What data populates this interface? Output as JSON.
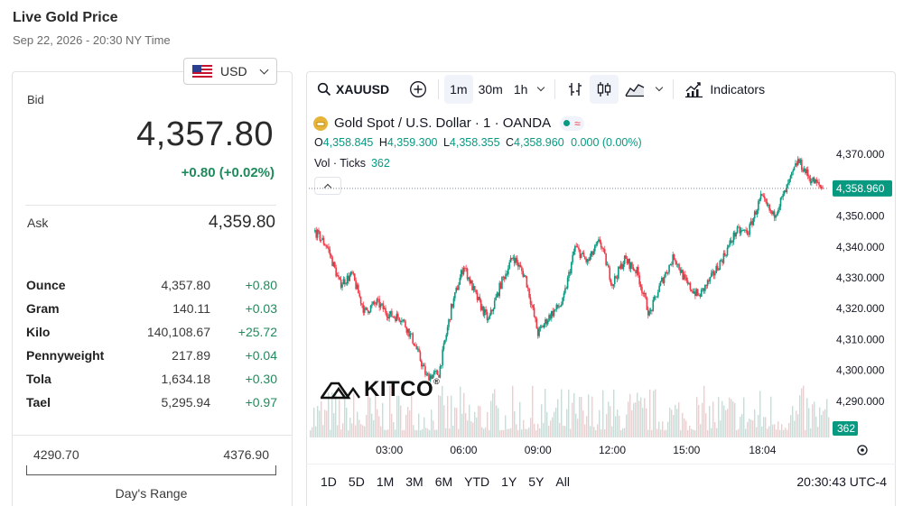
{
  "header": {
    "title": "Live Gold Price",
    "subtitle": "Sep 22, 2026 - 20:30 NY Time"
  },
  "currency": {
    "selected": "USD"
  },
  "quote": {
    "bid_label": "Bid",
    "bid": "4,357.80",
    "change": "+0.80 (+0.02%)",
    "ask_label": "Ask",
    "ask": "4,359.80"
  },
  "units": [
    {
      "name": "Ounce",
      "price": "4,357.80",
      "change": "+0.80"
    },
    {
      "name": "Gram",
      "price": "140.11",
      "change": "+0.03"
    },
    {
      "name": "Kilo",
      "price": "140,108.67",
      "change": "+25.72"
    },
    {
      "name": "Pennyweight",
      "price": "217.89",
      "change": "+0.04"
    },
    {
      "name": "Tola",
      "price": "1,634.18",
      "change": "+0.30"
    },
    {
      "name": "Tael",
      "price": "5,295.94",
      "change": "+0.97"
    }
  ],
  "day_range": {
    "low": "4290.70",
    "high": "4376.90",
    "label": "Day's Range"
  },
  "toolbar": {
    "symbol": "XAUUSD",
    "intervals": [
      "1m",
      "30m",
      "1h"
    ],
    "indicators_label": "Indicators"
  },
  "legend": {
    "instrument": "Gold Spot / U.S. Dollar · 1 · OANDA",
    "o_label": "O",
    "o": "4,358.845",
    "h_label": "H",
    "h": "4,359.300",
    "l_label": "L",
    "l": "4,358.355",
    "c_label": "C",
    "c": "4,358.960",
    "chg": "0.000 (0.00%)",
    "vol_label": "Vol · Ticks",
    "vol": "362"
  },
  "brand": {
    "logo_text": "KITCO",
    "reg": "®"
  },
  "bottom": {
    "timeframes": [
      "1D",
      "5D",
      "1M",
      "3M",
      "6M",
      "YTD",
      "1Y",
      "5Y",
      "All"
    ],
    "clock": "20:30:43 UTC-4"
  },
  "colors": {
    "up": "#089981",
    "down": "#f23645",
    "accent": "#1f8a5b",
    "gold": "#e8b339"
  },
  "chart_data": {
    "type": "line",
    "x_ticks": [
      "03:00",
      "06:00",
      "09:00",
      "12:00",
      "15:00",
      "18:04"
    ],
    "y_ticks": [
      "4,370.000",
      "4,350.000",
      "4,340.000",
      "4,330.000",
      "4,320.000",
      "4,310.000",
      "4,300.000",
      "4,290.000"
    ],
    "ylim": [
      4285,
      4375
    ],
    "last_price": 4358.96,
    "last_price_label": "4,358.960",
    "volume_label": "362",
    "x": [
      "00:00",
      "00:30",
      "01:00",
      "01:30",
      "02:00",
      "02:30",
      "03:00",
      "03:30",
      "04:00",
      "04:30",
      "05:00",
      "05:30",
      "06:00",
      "06:30",
      "07:00",
      "07:30",
      "08:00",
      "08:30",
      "09:00",
      "09:30",
      "10:00",
      "10:30",
      "11:00",
      "11:30",
      "12:00",
      "12:30",
      "13:00",
      "13:30",
      "14:00",
      "14:30",
      "15:00",
      "15:30",
      "16:00",
      "16:30",
      "17:00",
      "17:30",
      "18:00",
      "18:30",
      "19:00",
      "19:30",
      "20:00",
      "20:30"
    ],
    "series": [
      {
        "values": [
          4345,
          4340,
          4328,
          4331,
          4319,
          4322,
          4318,
          4317,
          4309,
          4298,
          4299,
          4320,
          4334,
          4324,
          4316,
          4328,
          4337,
          4330,
          4312,
          4318,
          4322,
          4340,
          4335,
          4342,
          4328,
          4336,
          4332,
          4318,
          4329,
          4337,
          4328,
          4324,
          4330,
          4337,
          4345,
          4345,
          4356,
          4350,
          4358,
          4368,
          4362,
          4359
        ]
      }
    ]
  }
}
